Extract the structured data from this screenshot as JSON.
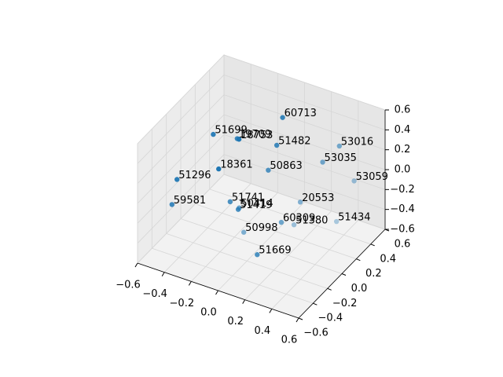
{
  "chart_data": {
    "type": "scatter3d",
    "color": "#1f77b4",
    "labels": [
      "60713",
      "51699",
      "18753",
      "19709",
      "51482",
      "53016",
      "53035",
      "50863",
      "18361",
      "51296",
      "53059",
      "20553",
      "51741",
      "59581",
      "50414",
      "51419",
      "60309",
      "51380",
      "51434",
      "50998",
      "51669"
    ],
    "x": [
      -0.04,
      -0.39,
      -0.22,
      -0.26,
      -0.03,
      0.27,
      0.21,
      -0.05,
      -0.28,
      -0.51,
      0.38,
      0.14,
      -0.2,
      -0.51,
      -0.17,
      -0.14,
      0.09,
      0.12,
      0.34,
      -0.12,
      0.05
    ],
    "y": [
      0.37,
      0.06,
      0.1,
      0.15,
      0.27,
      0.58,
      0.46,
      0.19,
      -0.07,
      -0.22,
      0.58,
      0.28,
      -0.06,
      -0.29,
      0.01,
      -0.06,
      0.11,
      0.23,
      0.41,
      -0.02,
      -0.15
    ],
    "z": [
      0.4,
      0.3,
      0.3,
      0.25,
      0.2,
      0.1,
      0.0,
      0.0,
      0.1,
      0.0,
      -0.2,
      -0.3,
      -0.2,
      -0.2,
      -0.3,
      -0.25,
      -0.4,
      -0.5,
      -0.5,
      -0.5,
      -0.55
    ],
    "xlim": [
      -0.6,
      0.6
    ],
    "ylim": [
      -0.6,
      0.6
    ],
    "zlim": [
      -0.6,
      0.6
    ],
    "xticks": [
      {
        "value": -0.6,
        "label": "−0.6"
      },
      {
        "value": -0.4,
        "label": "−0.4"
      },
      {
        "value": -0.2,
        "label": "−0.2"
      },
      {
        "value": 0,
        "label": "0.0"
      },
      0.2,
      0.4,
      0.6
    ],
    "yticks": [
      {
        "value": -0.6,
        "label": "−0.6"
      },
      {
        "value": -0.4,
        "label": "−0.4"
      },
      {
        "value": -0.2,
        "label": "−0.2"
      },
      {
        "value": 0,
        "label": "0.0"
      },
      0.2,
      0.4,
      0.6
    ],
    "zticks": [
      {
        "value": -0.6,
        "label": "−0.6"
      },
      {
        "value": -0.4,
        "label": "−0.4"
      },
      {
        "value": -0.2,
        "label": "−0.2"
      },
      {
        "value": 0,
        "label": "0.0"
      },
      0.2,
      0.4,
      0.6
    ],
    "grid": true
  }
}
